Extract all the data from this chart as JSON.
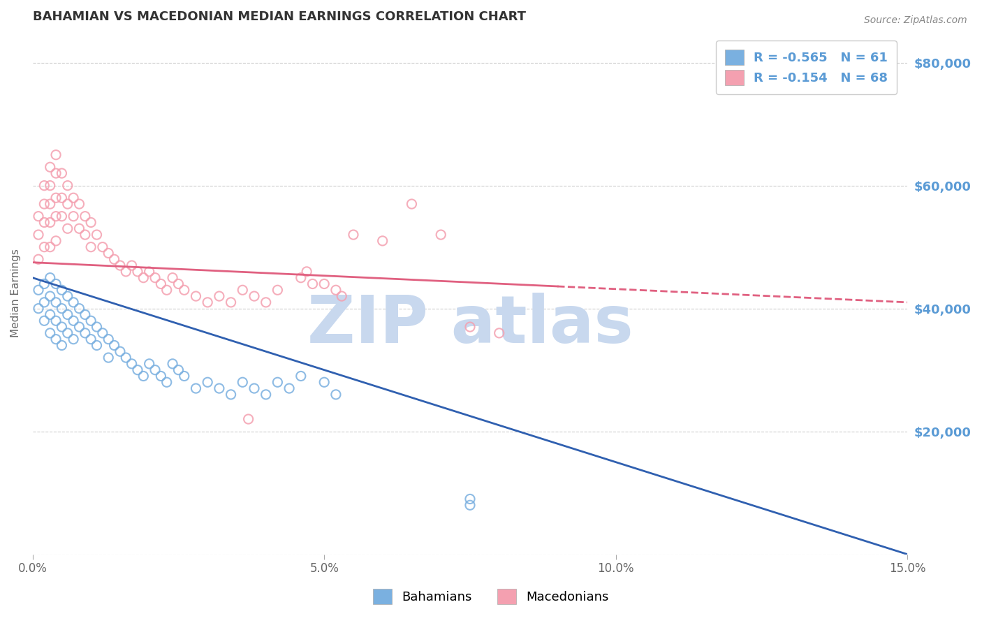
{
  "title": "BAHAMIAN VS MACEDONIAN MEDIAN EARNINGS CORRELATION CHART",
  "source": "Source: ZipAtlas.com",
  "ylabel": "Median Earnings",
  "xlim": [
    0.0,
    0.15
  ],
  "ylim": [
    0,
    85000
  ],
  "yticks": [
    0,
    20000,
    40000,
    60000,
    80000
  ],
  "ytick_labels": [
    "",
    "$20,000",
    "$40,000",
    "$60,000",
    "$80,000"
  ],
  "xticks": [
    0.0,
    0.05,
    0.1,
    0.15
  ],
  "xtick_labels": [
    "0.0%",
    "5.0%",
    "10.0%",
    "15.0%"
  ],
  "bahamian_color": "#7ab0e0",
  "macedonian_color": "#f4a0b0",
  "bahamian_line_color": "#3060b0",
  "macedonian_line_color": "#e06080",
  "legend_R1": "-0.565",
  "legend_N1": "61",
  "legend_R2": "-0.154",
  "legend_N2": "68",
  "legend_label1": "Bahamians",
  "legend_label2": "Macedonians",
  "bah_trend_x0": 0.0,
  "bah_trend_y0": 45000,
  "bah_trend_x1": 0.15,
  "bah_trend_y1": 0,
  "mac_trend_x0": 0.0,
  "mac_trend_y0": 47500,
  "mac_trend_x1": 0.15,
  "mac_trend_y1": 41000,
  "background_color": "#ffffff",
  "grid_color": "#cccccc",
  "title_color": "#333333",
  "axis_label_color": "#5b9bd5",
  "watermark_text": "ZIP atlas",
  "watermark_color": "#c8d8ee",
  "watermark_fontsize": 68,
  "bahamian_scatter_x": [
    0.001,
    0.001,
    0.002,
    0.002,
    0.002,
    0.003,
    0.003,
    0.003,
    0.003,
    0.004,
    0.004,
    0.004,
    0.004,
    0.005,
    0.005,
    0.005,
    0.005,
    0.006,
    0.006,
    0.006,
    0.007,
    0.007,
    0.007,
    0.008,
    0.008,
    0.009,
    0.009,
    0.01,
    0.01,
    0.011,
    0.011,
    0.012,
    0.013,
    0.013,
    0.014,
    0.015,
    0.016,
    0.017,
    0.018,
    0.019,
    0.02,
    0.021,
    0.022,
    0.023,
    0.024,
    0.025,
    0.026,
    0.028,
    0.03,
    0.032,
    0.034,
    0.036,
    0.038,
    0.04,
    0.042,
    0.044,
    0.046,
    0.05,
    0.052,
    0.075,
    0.075
  ],
  "bahamian_scatter_y": [
    43000,
    40000,
    44000,
    41000,
    38000,
    45000,
    42000,
    39000,
    36000,
    44000,
    41000,
    38000,
    35000,
    43000,
    40000,
    37000,
    34000,
    42000,
    39000,
    36000,
    41000,
    38000,
    35000,
    40000,
    37000,
    39000,
    36000,
    38000,
    35000,
    37000,
    34000,
    36000,
    35000,
    32000,
    34000,
    33000,
    32000,
    31000,
    30000,
    29000,
    31000,
    30000,
    29000,
    28000,
    31000,
    30000,
    29000,
    27000,
    28000,
    27000,
    26000,
    28000,
    27000,
    26000,
    28000,
    27000,
    29000,
    28000,
    26000,
    8000,
    9000
  ],
  "macedonian_scatter_x": [
    0.001,
    0.001,
    0.001,
    0.002,
    0.002,
    0.002,
    0.002,
    0.003,
    0.003,
    0.003,
    0.003,
    0.003,
    0.004,
    0.004,
    0.004,
    0.004,
    0.004,
    0.005,
    0.005,
    0.005,
    0.006,
    0.006,
    0.006,
    0.007,
    0.007,
    0.008,
    0.008,
    0.009,
    0.009,
    0.01,
    0.01,
    0.011,
    0.012,
    0.013,
    0.014,
    0.015,
    0.016,
    0.017,
    0.018,
    0.019,
    0.02,
    0.021,
    0.022,
    0.023,
    0.024,
    0.025,
    0.026,
    0.028,
    0.03,
    0.032,
    0.034,
    0.036,
    0.038,
    0.04,
    0.042,
    0.046,
    0.05,
    0.055,
    0.06,
    0.065,
    0.07,
    0.075,
    0.08,
    0.047,
    0.048,
    0.052,
    0.053,
    0.037
  ],
  "macedonian_scatter_y": [
    55000,
    52000,
    48000,
    60000,
    57000,
    54000,
    50000,
    63000,
    60000,
    57000,
    54000,
    50000,
    65000,
    62000,
    58000,
    55000,
    51000,
    62000,
    58000,
    55000,
    60000,
    57000,
    53000,
    58000,
    55000,
    57000,
    53000,
    55000,
    52000,
    54000,
    50000,
    52000,
    50000,
    49000,
    48000,
    47000,
    46000,
    47000,
    46000,
    45000,
    46000,
    45000,
    44000,
    43000,
    45000,
    44000,
    43000,
    42000,
    41000,
    42000,
    41000,
    43000,
    42000,
    41000,
    43000,
    45000,
    44000,
    52000,
    51000,
    57000,
    52000,
    37000,
    36000,
    46000,
    44000,
    43000,
    42000,
    22000
  ]
}
